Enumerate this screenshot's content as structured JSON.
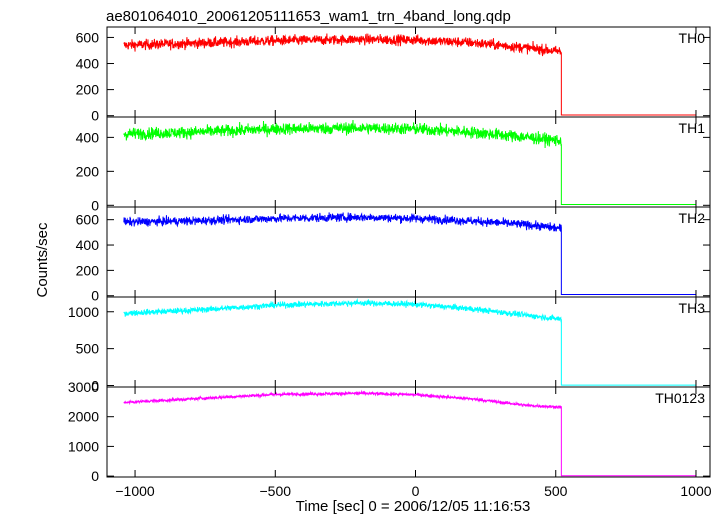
{
  "chart_data": {
    "type": "line",
    "title": "ae801064010_20061205111653_wam1_trn_4band_long.qdp",
    "xlabel": "Time [sec] 0 = 2006/12/05 11:16:53",
    "ylabel": "Counts/sec",
    "xlim": [
      -1100,
      1050
    ],
    "x_ticks": [
      -1000,
      -500,
      0,
      500,
      1000
    ],
    "x_tick_labels": [
      "−1000",
      "−500",
      "0",
      "500",
      "1000"
    ],
    "x_start": -1040,
    "x_drop": 520,
    "x_end": 1000,
    "grid": false,
    "series": [
      {
        "name": "TH0",
        "color": "#ff0000",
        "ylim": [
          -10,
          680
        ],
        "y_ticks": [
          0,
          200,
          400,
          600
        ],
        "trend_x": [
          -1040,
          -800,
          -500,
          -200,
          0,
          200,
          400,
          520
        ],
        "trend_y": [
          540,
          555,
          575,
          585,
          580,
          560,
          520,
          490
        ],
        "noise": 28,
        "post_level": 5
      },
      {
        "name": "TH1",
        "color": "#00ff00",
        "ylim": [
          -10,
          520
        ],
        "y_ticks": [
          0,
          200,
          400
        ],
        "trend_x": [
          -1040,
          -800,
          -500,
          -200,
          0,
          200,
          400,
          520
        ],
        "trend_y": [
          420,
          430,
          450,
          455,
          450,
          430,
          400,
          380
        ],
        "noise": 25,
        "post_level": 5
      },
      {
        "name": "TH2",
        "color": "#0000ff",
        "ylim": [
          -10,
          700
        ],
        "y_ticks": [
          0,
          200,
          400,
          600
        ],
        "trend_x": [
          -1040,
          -800,
          -500,
          -200,
          0,
          200,
          400,
          520
        ],
        "trend_y": [
          580,
          590,
          610,
          620,
          610,
          590,
          560,
          530
        ],
        "noise": 24,
        "post_level": 10
      },
      {
        "name": "TH3",
        "color": "#00ffff",
        "ylim": [
          -20,
          1200
        ],
        "y_ticks": [
          0,
          500,
          1000
        ],
        "trend_x": [
          -1040,
          -800,
          -500,
          -200,
          0,
          200,
          400,
          520
        ],
        "trend_y": [
          980,
          1020,
          1090,
          1120,
          1100,
          1040,
          950,
          900
        ],
        "noise": 28,
        "post_level": 5
      },
      {
        "name": "TH0123",
        "color": "#ff00ff",
        "ylim": [
          -30,
          3000
        ],
        "y_ticks": [
          0,
          1000,
          2000,
          3000
        ],
        "trend_x": [
          -1040,
          -800,
          -500,
          -200,
          0,
          200,
          400,
          520
        ],
        "trend_y": [
          2480,
          2600,
          2750,
          2790,
          2740,
          2600,
          2380,
          2320
        ],
        "noise": 35,
        "post_level": 10
      }
    ]
  }
}
